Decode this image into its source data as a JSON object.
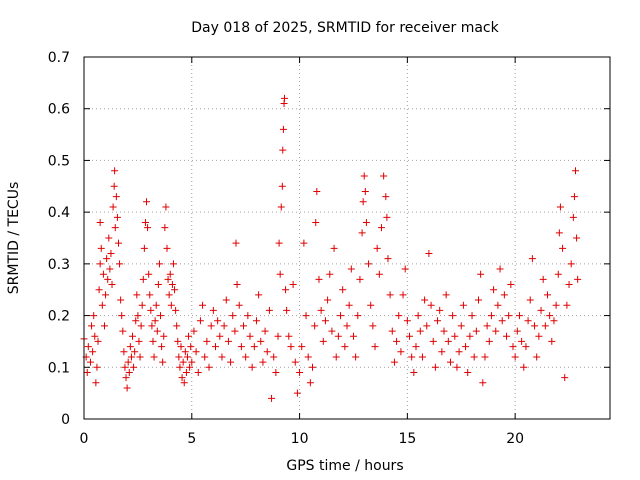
{
  "chart_data": {
    "type": "scatter",
    "title": "Day 018 of 2025, SRMTID for receiver mack",
    "xlabel": "GPS time / hours",
    "ylabel": "SRMTID / TECUs",
    "xlim": [
      0,
      24.4
    ],
    "ylim": [
      0,
      0.7
    ],
    "xticks": [
      0,
      5,
      10,
      15,
      20
    ],
    "xtick_labels": [
      "0",
      "5",
      "10",
      "15",
      "20"
    ],
    "yticks": [
      0,
      0.1,
      0.2,
      0.3,
      0.4,
      0.5,
      0.6,
      0.7
    ],
    "ytick_labels": [
      "0",
      "0.1",
      "0.2",
      "0.3",
      "0.4",
      "0.5",
      "0.6",
      "0.7"
    ],
    "grid": true,
    "marker": "+",
    "marker_color": "#e00000",
    "series": [
      {
        "name": "SRMTID",
        "points": [
          [
            0.0,
            0.155
          ],
          [
            0.1,
            0.12
          ],
          [
            0.15,
            0.09
          ],
          [
            0.2,
            0.14
          ],
          [
            0.3,
            0.11
          ],
          [
            0.35,
            0.18
          ],
          [
            0.4,
            0.13
          ],
          [
            0.45,
            0.2
          ],
          [
            0.5,
            0.16
          ],
          [
            0.55,
            0.07
          ],
          [
            0.6,
            0.1
          ],
          [
            0.65,
            0.15
          ],
          [
            0.7,
            0.25
          ],
          [
            0.75,
            0.3
          ],
          [
            0.75,
            0.38
          ],
          [
            0.8,
            0.33
          ],
          [
            0.85,
            0.22
          ],
          [
            0.9,
            0.28
          ],
          [
            0.95,
            0.18
          ],
          [
            1.0,
            0.24
          ],
          [
            1.05,
            0.31
          ],
          [
            1.1,
            0.27
          ],
          [
            1.15,
            0.35
          ],
          [
            1.2,
            0.29
          ],
          [
            1.25,
            0.32
          ],
          [
            1.3,
            0.26
          ],
          [
            1.35,
            0.41
          ],
          [
            1.4,
            0.45
          ],
          [
            1.42,
            0.48
          ],
          [
            1.45,
            0.37
          ],
          [
            1.5,
            0.43
          ],
          [
            1.55,
            0.39
          ],
          [
            1.6,
            0.34
          ],
          [
            1.65,
            0.3
          ],
          [
            1.7,
            0.23
          ],
          [
            1.75,
            0.2
          ],
          [
            1.8,
            0.17
          ],
          [
            1.85,
            0.13
          ],
          [
            1.9,
            0.1
          ],
          [
            1.95,
            0.08
          ],
          [
            2.0,
            0.06
          ],
          [
            2.05,
            0.11
          ],
          [
            2.1,
            0.09
          ],
          [
            2.15,
            0.14
          ],
          [
            2.2,
            0.12
          ],
          [
            2.25,
            0.16
          ],
          [
            2.3,
            0.1
          ],
          [
            2.35,
            0.13
          ],
          [
            2.4,
            0.19
          ],
          [
            2.45,
            0.24
          ],
          [
            2.5,
            0.2
          ],
          [
            2.55,
            0.15
          ],
          [
            2.6,
            0.12
          ],
          [
            2.65,
            0.18
          ],
          [
            2.7,
            0.22
          ],
          [
            2.75,
            0.27
          ],
          [
            2.8,
            0.33
          ],
          [
            2.85,
            0.38
          ],
          [
            2.9,
            0.42
          ],
          [
            2.95,
            0.37
          ],
          [
            3.0,
            0.28
          ],
          [
            3.05,
            0.24
          ],
          [
            3.1,
            0.21
          ],
          [
            3.15,
            0.18
          ],
          [
            3.2,
            0.15
          ],
          [
            3.25,
            0.12
          ],
          [
            3.3,
            0.19
          ],
          [
            3.35,
            0.22
          ],
          [
            3.4,
            0.17
          ],
          [
            3.45,
            0.26
          ],
          [
            3.5,
            0.3
          ],
          [
            3.55,
            0.2
          ],
          [
            3.6,
            0.14
          ],
          [
            3.65,
            0.11
          ],
          [
            3.7,
            0.16
          ],
          [
            3.75,
            0.37
          ],
          [
            3.8,
            0.41
          ],
          [
            3.85,
            0.33
          ],
          [
            3.9,
            0.27
          ],
          [
            3.95,
            0.24
          ],
          [
            4.0,
            0.28
          ],
          [
            4.05,
            0.22
          ],
          [
            4.1,
            0.26
          ],
          [
            4.15,
            0.3
          ],
          [
            4.2,
            0.25
          ],
          [
            4.25,
            0.21
          ],
          [
            4.3,
            0.18
          ],
          [
            4.35,
            0.15
          ],
          [
            4.4,
            0.12
          ],
          [
            4.45,
            0.1
          ],
          [
            4.5,
            0.14
          ],
          [
            4.55,
            0.08
          ],
          [
            4.6,
            0.11
          ],
          [
            4.65,
            0.07
          ],
          [
            4.7,
            0.13
          ],
          [
            4.75,
            0.09
          ],
          [
            4.8,
            0.12
          ],
          [
            4.85,
            0.16
          ],
          [
            4.9,
            0.1
          ],
          [
            4.95,
            0.14
          ],
          [
            5.0,
            0.11
          ],
          [
            5.1,
            0.17
          ],
          [
            5.2,
            0.13
          ],
          [
            5.3,
            0.09
          ],
          [
            5.4,
            0.19
          ],
          [
            5.5,
            0.22
          ],
          [
            5.6,
            0.12
          ],
          [
            5.7,
            0.15
          ],
          [
            5.8,
            0.1
          ],
          [
            5.9,
            0.18
          ],
          [
            6.0,
            0.21
          ],
          [
            6.1,
            0.14
          ],
          [
            6.2,
            0.19
          ],
          [
            6.3,
            0.16
          ],
          [
            6.4,
            0.12
          ],
          [
            6.5,
            0.18
          ],
          [
            6.6,
            0.23
          ],
          [
            6.7,
            0.15
          ],
          [
            6.8,
            0.11
          ],
          [
            6.9,
            0.2
          ],
          [
            7.0,
            0.17
          ],
          [
            7.05,
            0.34
          ],
          [
            7.1,
            0.26
          ],
          [
            7.2,
            0.22
          ],
          [
            7.3,
            0.14
          ],
          [
            7.4,
            0.18
          ],
          [
            7.5,
            0.12
          ],
          [
            7.6,
            0.2
          ],
          [
            7.7,
            0.16
          ],
          [
            7.8,
            0.1
          ],
          [
            7.9,
            0.14
          ],
          [
            8.0,
            0.19
          ],
          [
            8.1,
            0.24
          ],
          [
            8.2,
            0.15
          ],
          [
            8.3,
            0.11
          ],
          [
            8.4,
            0.17
          ],
          [
            8.5,
            0.13
          ],
          [
            8.6,
            0.21
          ],
          [
            8.7,
            0.04
          ],
          [
            8.8,
            0.12
          ],
          [
            8.9,
            0.09
          ],
          [
            9.0,
            0.16
          ],
          [
            9.05,
            0.34
          ],
          [
            9.1,
            0.28
          ],
          [
            9.15,
            0.41
          ],
          [
            9.2,
            0.45
          ],
          [
            9.22,
            0.52
          ],
          [
            9.25,
            0.56
          ],
          [
            9.28,
            0.61
          ],
          [
            9.3,
            0.62
          ],
          [
            9.35,
            0.25
          ],
          [
            9.4,
            0.21
          ],
          [
            9.5,
            0.16
          ],
          [
            9.6,
            0.14
          ],
          [
            9.7,
            0.26
          ],
          [
            9.8,
            0.11
          ],
          [
            9.9,
            0.05
          ],
          [
            10.0,
            0.09
          ],
          [
            10.1,
            0.14
          ],
          [
            10.2,
            0.34
          ],
          [
            10.3,
            0.2
          ],
          [
            10.4,
            0.12
          ],
          [
            10.5,
            0.07
          ],
          [
            10.6,
            0.1
          ],
          [
            10.7,
            0.18
          ],
          [
            10.75,
            0.38
          ],
          [
            10.8,
            0.44
          ],
          [
            10.9,
            0.27
          ],
          [
            11.0,
            0.21
          ],
          [
            11.1,
            0.15
          ],
          [
            11.2,
            0.19
          ],
          [
            11.3,
            0.23
          ],
          [
            11.4,
            0.28
          ],
          [
            11.5,
            0.17
          ],
          [
            11.6,
            0.33
          ],
          [
            11.7,
            0.12
          ],
          [
            11.8,
            0.16
          ],
          [
            11.9,
            0.2
          ],
          [
            12.0,
            0.25
          ],
          [
            12.1,
            0.14
          ],
          [
            12.2,
            0.18
          ],
          [
            12.3,
            0.22
          ],
          [
            12.4,
            0.29
          ],
          [
            12.5,
            0.16
          ],
          [
            12.6,
            0.12
          ],
          [
            12.7,
            0.2
          ],
          [
            12.8,
            0.27
          ],
          [
            12.9,
            0.36
          ],
          [
            12.95,
            0.42
          ],
          [
            13.0,
            0.47
          ],
          [
            13.05,
            0.44
          ],
          [
            13.1,
            0.38
          ],
          [
            13.2,
            0.3
          ],
          [
            13.3,
            0.22
          ],
          [
            13.4,
            0.18
          ],
          [
            13.5,
            0.14
          ],
          [
            13.6,
            0.33
          ],
          [
            13.7,
            0.28
          ],
          [
            13.8,
            0.37
          ],
          [
            13.9,
            0.47
          ],
          [
            14.0,
            0.43
          ],
          [
            14.05,
            0.39
          ],
          [
            14.1,
            0.31
          ],
          [
            14.2,
            0.24
          ],
          [
            14.3,
            0.17
          ],
          [
            14.4,
            0.11
          ],
          [
            14.5,
            0.15
          ],
          [
            14.6,
            0.2
          ],
          [
            14.7,
            0.13
          ],
          [
            14.8,
            0.24
          ],
          [
            14.9,
            0.29
          ],
          [
            15.0,
            0.19
          ],
          [
            15.1,
            0.16
          ],
          [
            15.2,
            0.12
          ],
          [
            15.3,
            0.09
          ],
          [
            15.4,
            0.14
          ],
          [
            15.5,
            0.2
          ],
          [
            15.6,
            0.17
          ],
          [
            15.7,
            0.12
          ],
          [
            15.8,
            0.23
          ],
          [
            15.9,
            0.18
          ],
          [
            16.0,
            0.32
          ],
          [
            16.1,
            0.22
          ],
          [
            16.2,
            0.15
          ],
          [
            16.3,
            0.1
          ],
          [
            16.4,
            0.19
          ],
          [
            16.5,
            0.21
          ],
          [
            16.6,
            0.13
          ],
          [
            16.7,
            0.17
          ],
          [
            16.8,
            0.24
          ],
          [
            16.9,
            0.15
          ],
          [
            17.0,
            0.11
          ],
          [
            17.1,
            0.2
          ],
          [
            17.2,
            0.16
          ],
          [
            17.3,
            0.1
          ],
          [
            17.4,
            0.13
          ],
          [
            17.5,
            0.18
          ],
          [
            17.6,
            0.22
          ],
          [
            17.7,
            0.14
          ],
          [
            17.8,
            0.09
          ],
          [
            17.9,
            0.16
          ],
          [
            18.0,
            0.2
          ],
          [
            18.1,
            0.12
          ],
          [
            18.2,
            0.17
          ],
          [
            18.3,
            0.23
          ],
          [
            18.4,
            0.28
          ],
          [
            18.5,
            0.07
          ],
          [
            18.6,
            0.12
          ],
          [
            18.7,
            0.18
          ],
          [
            18.8,
            0.15
          ],
          [
            18.9,
            0.2
          ],
          [
            19.0,
            0.25
          ],
          [
            19.1,
            0.17
          ],
          [
            19.2,
            0.22
          ],
          [
            19.3,
            0.29
          ],
          [
            19.4,
            0.19
          ],
          [
            19.5,
            0.24
          ],
          [
            19.6,
            0.16
          ],
          [
            19.7,
            0.2
          ],
          [
            19.8,
            0.26
          ],
          [
            19.9,
            0.14
          ],
          [
            20.0,
            0.12
          ],
          [
            20.1,
            0.17
          ],
          [
            20.2,
            0.2
          ],
          [
            20.3,
            0.15
          ],
          [
            20.4,
            0.1
          ],
          [
            20.5,
            0.14
          ],
          [
            20.6,
            0.19
          ],
          [
            20.7,
            0.23
          ],
          [
            20.8,
            0.31
          ],
          [
            20.9,
            0.18
          ],
          [
            21.0,
            0.12
          ],
          [
            21.1,
            0.16
          ],
          [
            21.2,
            0.21
          ],
          [
            21.3,
            0.27
          ],
          [
            21.4,
            0.18
          ],
          [
            21.5,
            0.24
          ],
          [
            21.6,
            0.2
          ],
          [
            21.7,
            0.15
          ],
          [
            21.8,
            0.19
          ],
          [
            21.9,
            0.22
          ],
          [
            22.0,
            0.28
          ],
          [
            22.05,
            0.36
          ],
          [
            22.1,
            0.41
          ],
          [
            22.2,
            0.33
          ],
          [
            22.3,
            0.08
          ],
          [
            22.4,
            0.22
          ],
          [
            22.5,
            0.26
          ],
          [
            22.6,
            0.3
          ],
          [
            22.7,
            0.39
          ],
          [
            22.75,
            0.43
          ],
          [
            22.8,
            0.48
          ],
          [
            22.85,
            0.35
          ],
          [
            22.9,
            0.27
          ]
        ]
      }
    ]
  }
}
